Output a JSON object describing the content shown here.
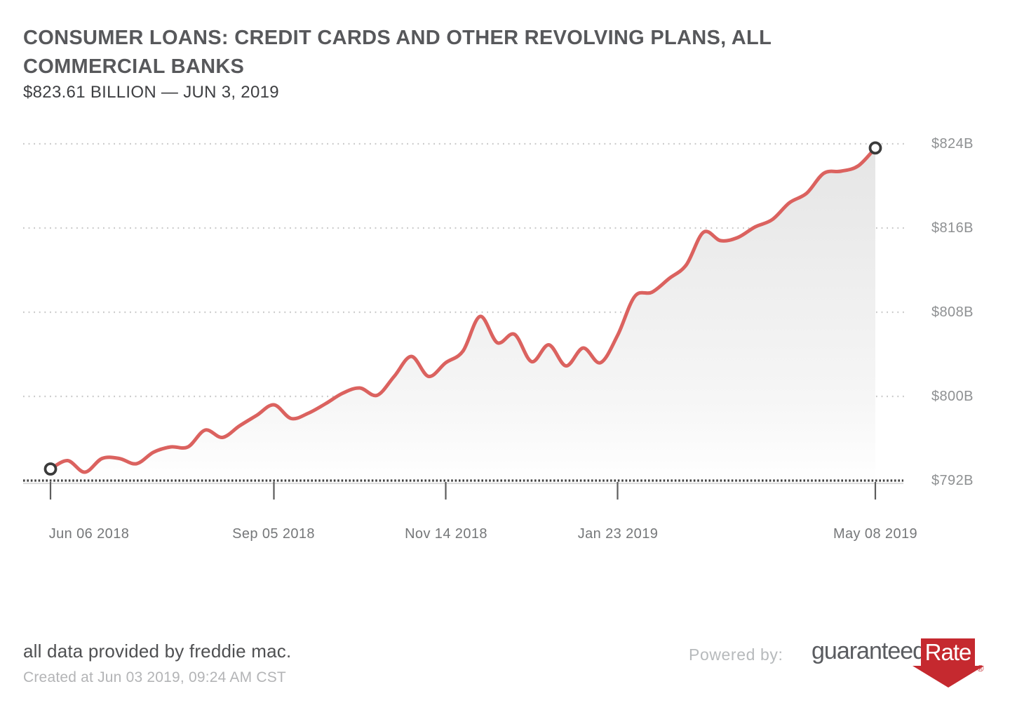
{
  "header": {
    "title_lines": [
      "CONSUMER LOANS: CREDIT CARDS AND OTHER REVOLVING PLANS, ALL",
      "COMMERCIAL BANKS"
    ],
    "subtitle": "$823.61 BILLION — JUN 3, 2019"
  },
  "chart_data": {
    "type": "line",
    "title": "CONSUMER LOANS: CREDIT CARDS AND OTHER REVOLVING PLANS, ALL COMMERCIAL BANKS",
    "subtitle": "$823.61 BILLION — JUN 3, 2019",
    "latest_value_billions": 823.61,
    "latest_value_date": "Jun 3, 2019",
    "unit": "USD billions",
    "x": [
      "Jun 06 2018",
      "Jun 13 2018",
      "Jun 20 2018",
      "Jun 27 2018",
      "Jul 04 2018",
      "Jul 11 2018",
      "Jul 18 2018",
      "Jul 25 2018",
      "Aug 01 2018",
      "Aug 08 2018",
      "Aug 15 2018",
      "Aug 22 2018",
      "Aug 29 2018",
      "Sep 05 2018",
      "Sep 12 2018",
      "Sep 19 2018",
      "Sep 26 2018",
      "Oct 03 2018",
      "Oct 10 2018",
      "Oct 17 2018",
      "Oct 24 2018",
      "Oct 31 2018",
      "Nov 07 2018",
      "Nov 14 2018",
      "Nov 21 2018",
      "Nov 28 2018",
      "Dec 05 2018",
      "Dec 12 2018",
      "Dec 19 2018",
      "Dec 26 2018",
      "Jan 02 2019",
      "Jan 09 2019",
      "Jan 16 2019",
      "Jan 23 2019",
      "Jan 30 2019",
      "Feb 06 2019",
      "Feb 13 2019",
      "Feb 20 2019",
      "Feb 27 2019",
      "Mar 06 2019",
      "Mar 13 2019",
      "Mar 20 2019",
      "Mar 27 2019",
      "Apr 03 2019",
      "Apr 10 2019",
      "Apr 17 2019",
      "Apr 24 2019",
      "May 01 2019",
      "May 08 2019"
    ],
    "values": [
      793.1,
      793.9,
      792.8,
      794.1,
      794.1,
      793.6,
      794.7,
      795.2,
      795.2,
      796.8,
      796.1,
      797.2,
      798.2,
      799.2,
      797.9,
      798.4,
      799.3,
      800.3,
      800.8,
      800.1,
      801.9,
      803.8,
      801.9,
      803.2,
      804.3,
      807.6,
      805.1,
      805.9,
      803.3,
      804.9,
      802.9,
      804.6,
      803.2,
      805.8,
      809.5,
      809.9,
      811.2,
      812.5,
      815.6,
      814.8,
      815.1,
      816.1,
      816.8,
      818.4,
      819.3,
      821.2,
      821.4,
      821.9,
      823.61
    ],
    "x_tick_labels": [
      "Jun 06 2018",
      "Sep 05 2018",
      "Nov 14 2018",
      "Jan 23 2019",
      "May 08 2019"
    ],
    "y_tick_labels": [
      "$824B",
      "$816B",
      "$808B",
      "$800B",
      "$792B"
    ],
    "ylim": [
      792,
      824
    ],
    "y_tick_step_billions": 8,
    "grid": "horizontal dotted lines, dotted x-axis baseline",
    "legend": "none",
    "line_color": "#db625f",
    "area_fill": "vertical gray gradient fading to white",
    "endpoint_markers": "open circles at first and last points"
  },
  "footer": {
    "attribution": "all data provided by freddie mac.",
    "created": "Created at Jun 03 2019, 09:24 AM CST",
    "powered_by": "Powered by:",
    "logo": {
      "part1": "guaranteed",
      "part2": "Rate",
      "registered": "®",
      "brand_red": "#c5292f"
    }
  }
}
